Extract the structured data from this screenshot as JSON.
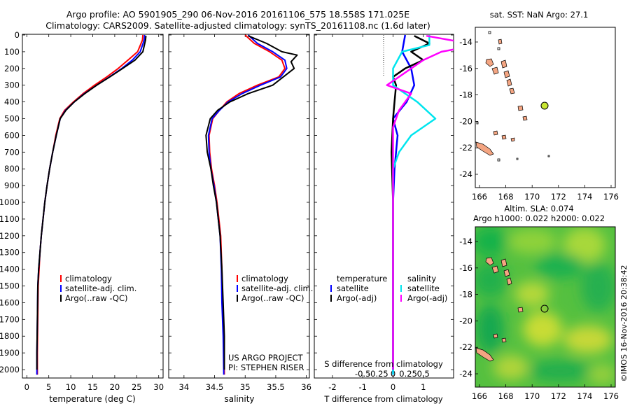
{
  "title_line1": "Argo profile: AO 5901905_290 06-Nov-2016 20161106_575 18.558S 171.025E",
  "title_line2": "Climatology: CARS2009. Satellite-adjusted climatology: synTS_20161108.nc (1.6d later)",
  "legend_temp": [
    "climatology",
    "satellite-adj. clim.",
    "Argo(..raw -QC)"
  ],
  "legend_sal": [
    "climatology",
    "satellite-adj. clim.",
    "Argo(..raw -QC)"
  ],
  "legend_diff": {
    "temperature_header": "temperature",
    "salinity_header": "salinity",
    "entries": [
      "satellite",
      "Argo(-adj)",
      "satellite",
      "Argo(-adj)"
    ]
  },
  "project_text": [
    "US ARGO PROJECT",
    "PI: STEPHEN RISER"
  ],
  "xlabel_temp": "temperature (deg C)",
  "xlabel_sal": "salinity",
  "xlabel_diff_s": "S difference from climatology",
  "xlabel_diff_t": "T difference from climatology",
  "sst_title": "sat. SST: NaN Argo: 27.1",
  "sla_title1": "Altim. SLA: 0.074",
  "sla_title2": "Argo h1000: 0.022 h2000: 0.022",
  "credit": "©IMOS 16-Nov-2016 20:38:42",
  "colors": {
    "climatology": "#ff0000",
    "satellite": "#0000ff",
    "argo": "#000000",
    "sat_s": "#00e5ee",
    "argo_s": "#ff00ff",
    "land": "#f4a582",
    "marker": "#c8e632"
  },
  "chart_data": [
    {
      "type": "line",
      "id": "temperature",
      "xlabel": "temperature (deg C)",
      "xlim": [
        -1,
        31
      ],
      "ylim": [
        2050,
        0
      ],
      "xticks": [
        0,
        5,
        10,
        15,
        20,
        25,
        30
      ],
      "yticks": [
        0,
        100,
        200,
        300,
        400,
        500,
        600,
        700,
        800,
        900,
        1000,
        1100,
        1200,
        1300,
        1400,
        1500,
        1600,
        1700,
        1800,
        1900,
        2000
      ],
      "series": [
        {
          "name": "climatology",
          "color": "#ff0000",
          "x": [
            26.4,
            26.3,
            25.2,
            23.0,
            20.8,
            18.2,
            15.4,
            12.8,
            10.6,
            8.6,
            7.5,
            6.6,
            5.9,
            5.2,
            4.6,
            4.1,
            3.7,
            3.3,
            3.0,
            2.8,
            2.6,
            2.5,
            2.4,
            2.4
          ],
          "y": [
            0,
            30,
            100,
            150,
            200,
            250,
            300,
            350,
            400,
            450,
            500,
            600,
            700,
            800,
            900,
            1000,
            1100,
            1200,
            1300,
            1400,
            1500,
            1700,
            1900,
            2030
          ]
        },
        {
          "name": "satellite-adj. clim.",
          "color": "#0000ff",
          "x": [
            26.8,
            26.7,
            25.8,
            24.0,
            21.6,
            18.8,
            15.9,
            13.1,
            10.8,
            8.8,
            7.6,
            6.7,
            5.9,
            5.2,
            4.6,
            4.1,
            3.7,
            3.3,
            3.0,
            2.7,
            2.5,
            2.4,
            2.3,
            2.3
          ],
          "y": [
            0,
            30,
            100,
            150,
            200,
            250,
            300,
            350,
            400,
            450,
            500,
            600,
            700,
            800,
            900,
            1000,
            1100,
            1200,
            1300,
            1400,
            1500,
            1700,
            1900,
            2030
          ]
        },
        {
          "name": "Argo(..raw -QC)",
          "color": "#000000",
          "x": [
            27.1,
            27.0,
            26.4,
            24.6,
            21.8,
            18.9,
            15.9,
            13.2,
            10.8,
            8.9,
            7.6,
            6.7,
            5.9,
            5.2,
            4.6,
            4.1,
            3.7,
            3.3,
            3.0,
            2.7,
            2.5,
            2.4,
            2.3,
            2.3
          ],
          "y": [
            5,
            30,
            100,
            150,
            200,
            250,
            300,
            350,
            400,
            450,
            500,
            600,
            700,
            800,
            900,
            1000,
            1100,
            1200,
            1300,
            1400,
            1500,
            1700,
            1900,
            2000
          ]
        }
      ]
    },
    {
      "type": "line",
      "id": "salinity",
      "xlabel": "salinity",
      "xlim": [
        33.75,
        36.05
      ],
      "ylim": [
        2050,
        0
      ],
      "xticks": [
        34,
        34.5,
        35,
        35.5,
        36
      ],
      "series": [
        {
          "name": "climatology",
          "color": "#ff0000",
          "x": [
            35.0,
            35.15,
            35.4,
            35.6,
            35.65,
            35.55,
            35.2,
            34.9,
            34.7,
            34.58,
            34.47,
            34.41,
            34.42,
            34.45,
            34.5,
            34.54,
            34.57,
            34.6,
            34.62,
            34.63,
            34.65,
            34.66
          ],
          "y": [
            0,
            50,
            100,
            150,
            200,
            250,
            300,
            350,
            400,
            450,
            500,
            600,
            700,
            800,
            900,
            1000,
            1100,
            1200,
            1400,
            1600,
            1800,
            2030
          ]
        },
        {
          "name": "satellite-adj. clim.",
          "color": "#0000ff",
          "x": [
            35.05,
            35.2,
            35.45,
            35.65,
            35.68,
            35.58,
            35.25,
            34.95,
            34.72,
            34.58,
            34.46,
            34.4,
            34.41,
            34.44,
            34.49,
            34.53,
            34.56,
            34.59,
            34.61,
            34.62,
            34.64,
            34.65
          ],
          "y": [
            0,
            50,
            100,
            150,
            200,
            250,
            300,
            350,
            400,
            450,
            500,
            600,
            700,
            800,
            900,
            1000,
            1100,
            1200,
            1400,
            1600,
            1800,
            2030
          ]
        },
        {
          "name": "Argo(..raw -QC)",
          "color": "#000000",
          "x": [
            35.05,
            35.35,
            35.6,
            35.85,
            35.75,
            35.8,
            35.45,
            35.05,
            34.75,
            34.55,
            34.43,
            34.36,
            34.38,
            34.44,
            34.48,
            34.53,
            34.56,
            34.59,
            34.62,
            34.64,
            34.66,
            34.66
          ],
          "y": [
            5,
            50,
            100,
            120,
            160,
            200,
            300,
            350,
            400,
            450,
            500,
            600,
            700,
            800,
            900,
            1000,
            1100,
            1200,
            1400,
            1600,
            1800,
            2000
          ]
        }
      ]
    },
    {
      "type": "line",
      "id": "difference",
      "xlabel": "T difference from climatology",
      "xlim": [
        -2.6,
        2.0
      ],
      "ylim": [
        2050,
        0
      ],
      "xticks_t": [
        -2,
        -1,
        0,
        1
      ],
      "xticks_s": [
        -0.5,
        -0.25,
        0,
        0.25,
        0.5
      ],
      "series": [
        {
          "name": "temperature satellite",
          "color": "#0000ff",
          "x": [
            0.4,
            0.3,
            0.6,
            0.7,
            0.45,
            0.0,
            0.15,
            0.1,
            0.05,
            0.0,
            0.0,
            0.0,
            0.0,
            0.0
          ],
          "y": [
            0,
            100,
            200,
            300,
            400,
            500,
            600,
            700,
            800,
            1000,
            1200,
            1500,
            1800,
            2030
          ]
        },
        {
          "name": "temperature Argo(-adj)",
          "color": "#000000",
          "x": [
            0.7,
            1.2,
            0.6,
            1.0,
            0.4,
            0.0,
            0.1,
            0.05,
            0.0,
            -0.05,
            0.0,
            0.0,
            0.0,
            0.0
          ],
          "y": [
            5,
            50,
            100,
            150,
            200,
            250,
            300,
            400,
            500,
            700,
            1000,
            1400,
            1800,
            2000
          ]
        },
        {
          "name": "salinity satellite",
          "color": "#00e5ee",
          "x": [
            0.6,
            0.6,
            0.15,
            0.0,
            0.0,
            0.4,
            0.7,
            0.3,
            0.1,
            0.0,
            0.0,
            0.0,
            0.0
          ],
          "y": [
            0,
            60,
            100,
            200,
            300,
            400,
            500,
            600,
            700,
            800,
            1000,
            1500,
            2030
          ]
        },
        {
          "name": "salinity Argo(-adj)",
          "color": "#ff00ff",
          "x": [
            0.55,
            1.4,
            0.8,
            0.5,
            -0.1,
            0.3,
            0.1,
            0.0,
            0.0,
            0.0,
            0.0,
            0.0
          ],
          "y": [
            5,
            60,
            100,
            150,
            300,
            350,
            450,
            550,
            700,
            1000,
            1500,
            2000
          ]
        }
      ]
    },
    {
      "type": "map",
      "id": "sst_map",
      "title": "sat. SST: NaN Argo: 27.1",
      "xticks": [
        166,
        168,
        170,
        172,
        174,
        176
      ],
      "yticks": [
        -14,
        -16,
        -18,
        -20,
        -22,
        -24
      ],
      "argo_position": {
        "lon": 171.025,
        "lat": -18.558
      }
    },
    {
      "type": "map",
      "id": "sla_map",
      "title": "Altim. SLA: 0.074",
      "xticks": [
        166,
        168,
        170,
        172,
        174,
        176
      ],
      "yticks": [
        -14,
        -16,
        -18,
        -20,
        -22,
        -24
      ],
      "argo_position": {
        "lon": 171.025,
        "lat": -18.558
      }
    }
  ]
}
